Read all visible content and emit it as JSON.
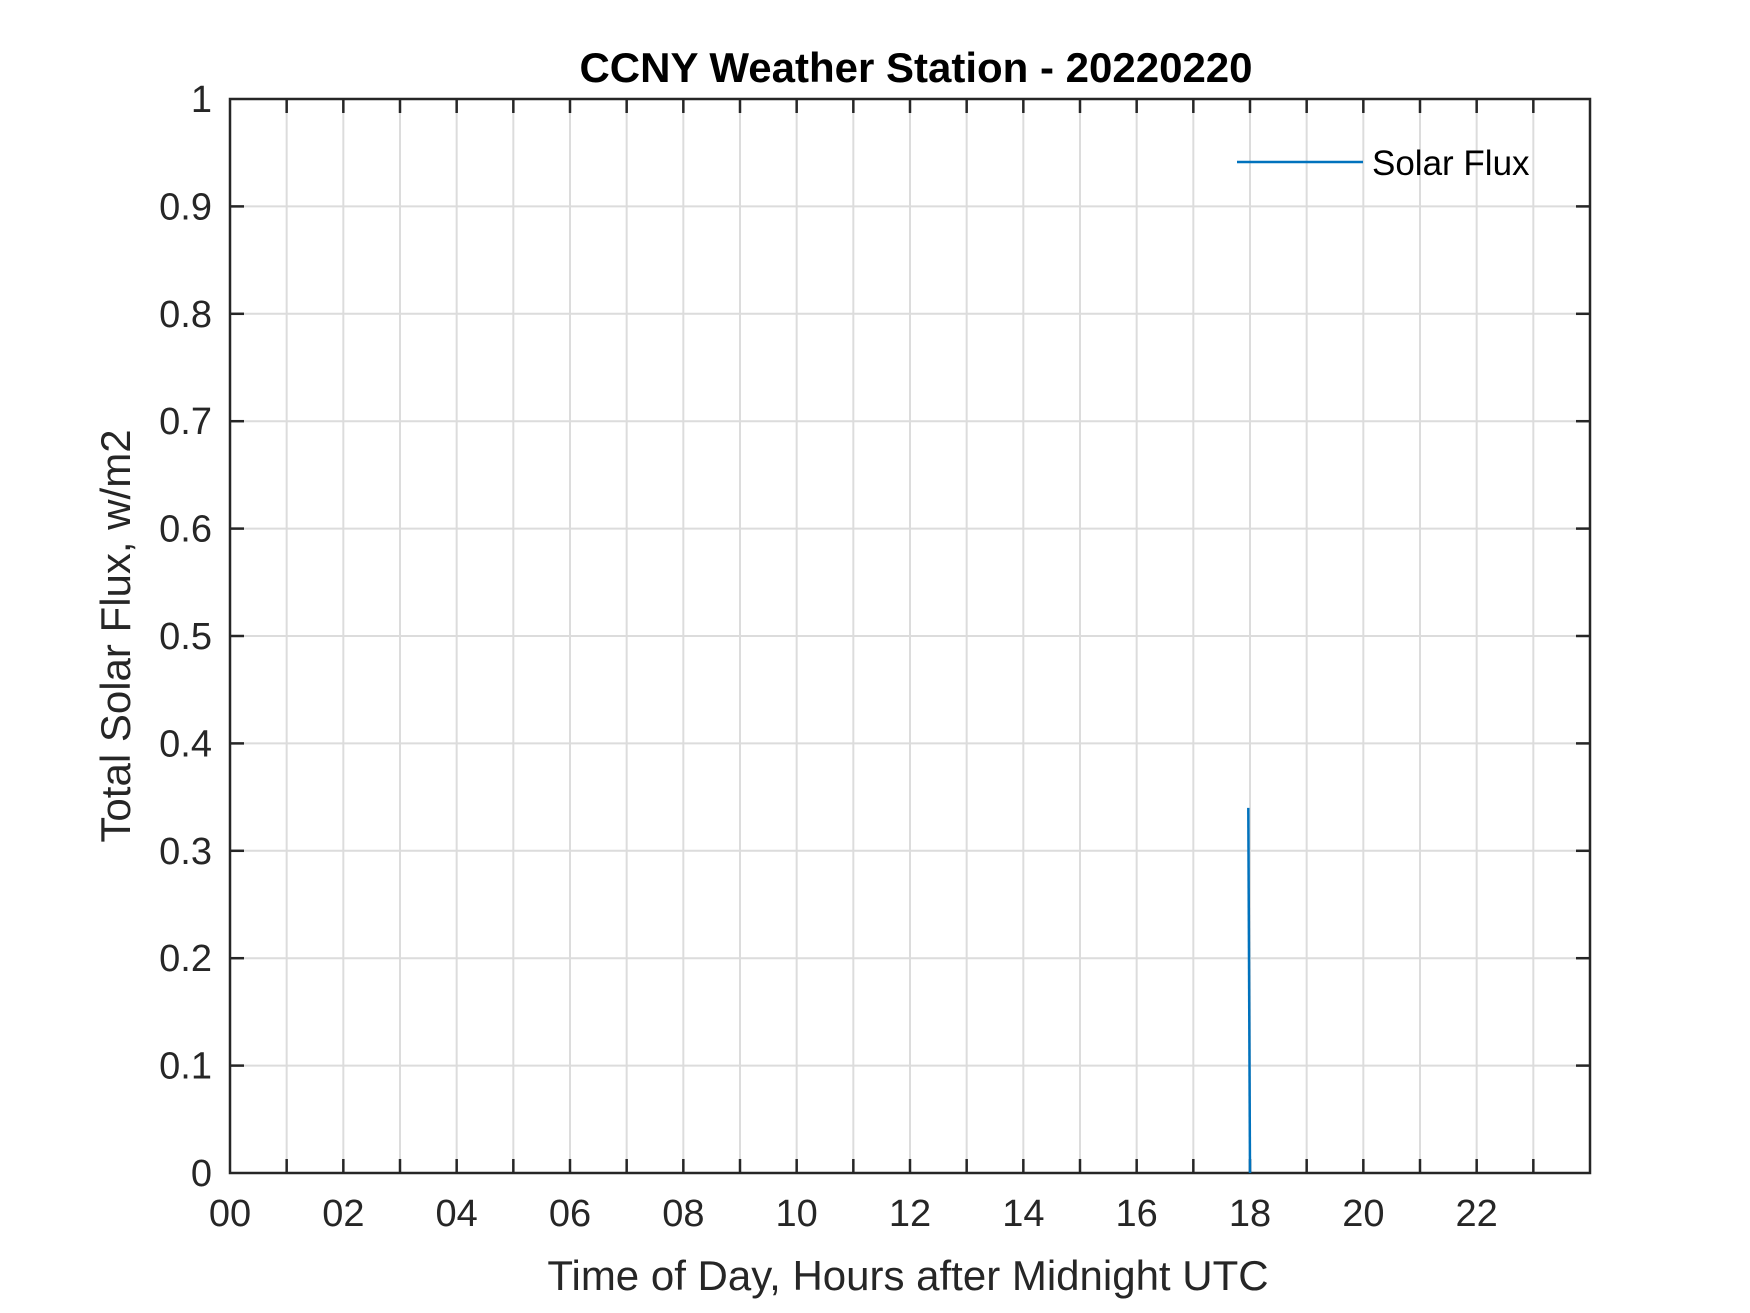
{
  "chart_data": {
    "type": "line",
    "title": "CCNY Weather Station - 20220220",
    "xlabel": "Time of Day, Hours after Midnight UTC",
    "ylabel": "Total Solar Flux, w/m2",
    "xlim": [
      0,
      24
    ],
    "ylim": [
      0,
      1
    ],
    "x_ticks": [
      "00",
      "02",
      "04",
      "06",
      "08",
      "10",
      "12",
      "14",
      "16",
      "18",
      "20",
      "22"
    ],
    "x_tick_values": [
      0,
      2,
      4,
      6,
      8,
      10,
      12,
      14,
      16,
      18,
      20,
      22
    ],
    "y_ticks": [
      "0",
      "0.1",
      "0.2",
      "0.3",
      "0.4",
      "0.5",
      "0.6",
      "0.7",
      "0.8",
      "0.9",
      "1"
    ],
    "y_tick_values": [
      0,
      0.1,
      0.2,
      0.3,
      0.4,
      0.5,
      0.6,
      0.7,
      0.8,
      0.9,
      1
    ],
    "grid": true,
    "minor_x_grid_step": 1,
    "legend_position": "top-right",
    "series": [
      {
        "name": "Solar Flux",
        "color": "#0072BD",
        "points": [
          [
            17.97,
            0.34
          ],
          [
            18.0,
            0.0
          ]
        ]
      }
    ]
  }
}
